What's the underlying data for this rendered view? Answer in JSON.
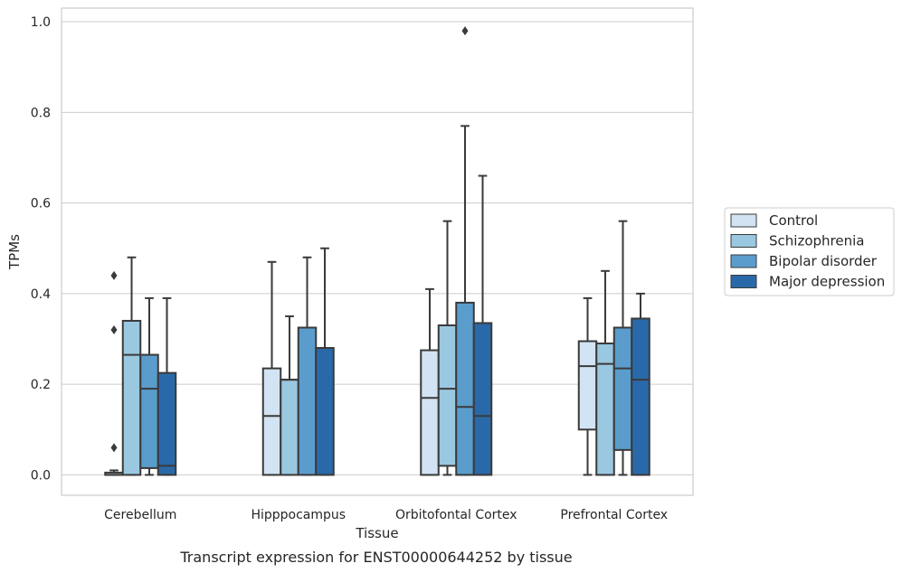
{
  "chart_data": {
    "type": "box",
    "xlabel": "Tissue",
    "ylabel": "TPMs",
    "caption": "Transcript expression for ENST00000644252 by tissue",
    "ylim": [
      -0.045,
      1.03
    ],
    "yticks": [
      0.0,
      0.2,
      0.4,
      0.6,
      0.8,
      1.0
    ],
    "ytick_labels": [
      "0.0",
      "0.2",
      "0.4",
      "0.6",
      "0.8",
      "1.0"
    ],
    "grid": true,
    "legend_position": "right",
    "categories": [
      "Cerebellum",
      "Hipppocampus",
      "Orbitofontal Cortex",
      "Prefrontal Cortex"
    ],
    "series": [
      {
        "name": "Control",
        "color": "#d2e3f3",
        "boxes": [
          {
            "whislo": 0.0,
            "q1": 0.0,
            "med": 0.0,
            "q3": 0.005,
            "whishi": 0.01,
            "fliers": [
              0.06,
              0.32,
              0.44
            ]
          },
          {
            "whislo": 0.0,
            "q1": 0.0,
            "med": 0.13,
            "q3": 0.235,
            "whishi": 0.47,
            "fliers": []
          },
          {
            "whislo": 0.0,
            "q1": 0.0,
            "med": 0.17,
            "q3": 0.275,
            "whishi": 0.41,
            "fliers": []
          },
          {
            "whislo": 0.0,
            "q1": 0.1,
            "med": 0.24,
            "q3": 0.295,
            "whishi": 0.39,
            "fliers": []
          }
        ]
      },
      {
        "name": "Schizophrenia",
        "color": "#9ac8e0",
        "boxes": [
          {
            "whislo": 0.0,
            "q1": 0.0,
            "med": 0.265,
            "q3": 0.34,
            "whishi": 0.48,
            "fliers": []
          },
          {
            "whislo": 0.0,
            "q1": 0.0,
            "med": 0.21,
            "q3": 0.21,
            "whishi": 0.35,
            "fliers": []
          },
          {
            "whislo": 0.0,
            "q1": 0.02,
            "med": 0.19,
            "q3": 0.33,
            "whishi": 0.56,
            "fliers": []
          },
          {
            "whislo": 0.0,
            "q1": 0.0,
            "med": 0.245,
            "q3": 0.29,
            "whishi": 0.45,
            "fliers": []
          }
        ]
      },
      {
        "name": "Bipolar disorder",
        "color": "#5a9dcd",
        "boxes": [
          {
            "whislo": 0.0,
            "q1": 0.015,
            "med": 0.19,
            "q3": 0.265,
            "whishi": 0.39,
            "fliers": []
          },
          {
            "whislo": 0.0,
            "q1": 0.0,
            "med": 0.325,
            "q3": 0.325,
            "whishi": 0.48,
            "fliers": []
          },
          {
            "whislo": 0.0,
            "q1": 0.0,
            "med": 0.15,
            "q3": 0.38,
            "whishi": 0.77,
            "fliers": [
              0.98
            ]
          },
          {
            "whislo": 0.0,
            "q1": 0.055,
            "med": 0.235,
            "q3": 0.325,
            "whishi": 0.56,
            "fliers": []
          }
        ]
      },
      {
        "name": "Major depression",
        "color": "#2a69a9",
        "boxes": [
          {
            "whislo": 0.0,
            "q1": 0.0,
            "med": 0.02,
            "q3": 0.225,
            "whishi": 0.39,
            "fliers": []
          },
          {
            "whislo": 0.0,
            "q1": 0.0,
            "med": 0.28,
            "q3": 0.28,
            "whishi": 0.5,
            "fliers": []
          },
          {
            "whislo": 0.0,
            "q1": 0.0,
            "med": 0.13,
            "q3": 0.335,
            "whishi": 0.66,
            "fliers": []
          },
          {
            "whislo": 0.0,
            "q1": 0.0,
            "med": 0.21,
            "q3": 0.345,
            "whishi": 0.4,
            "fliers": []
          }
        ]
      }
    ]
  }
}
